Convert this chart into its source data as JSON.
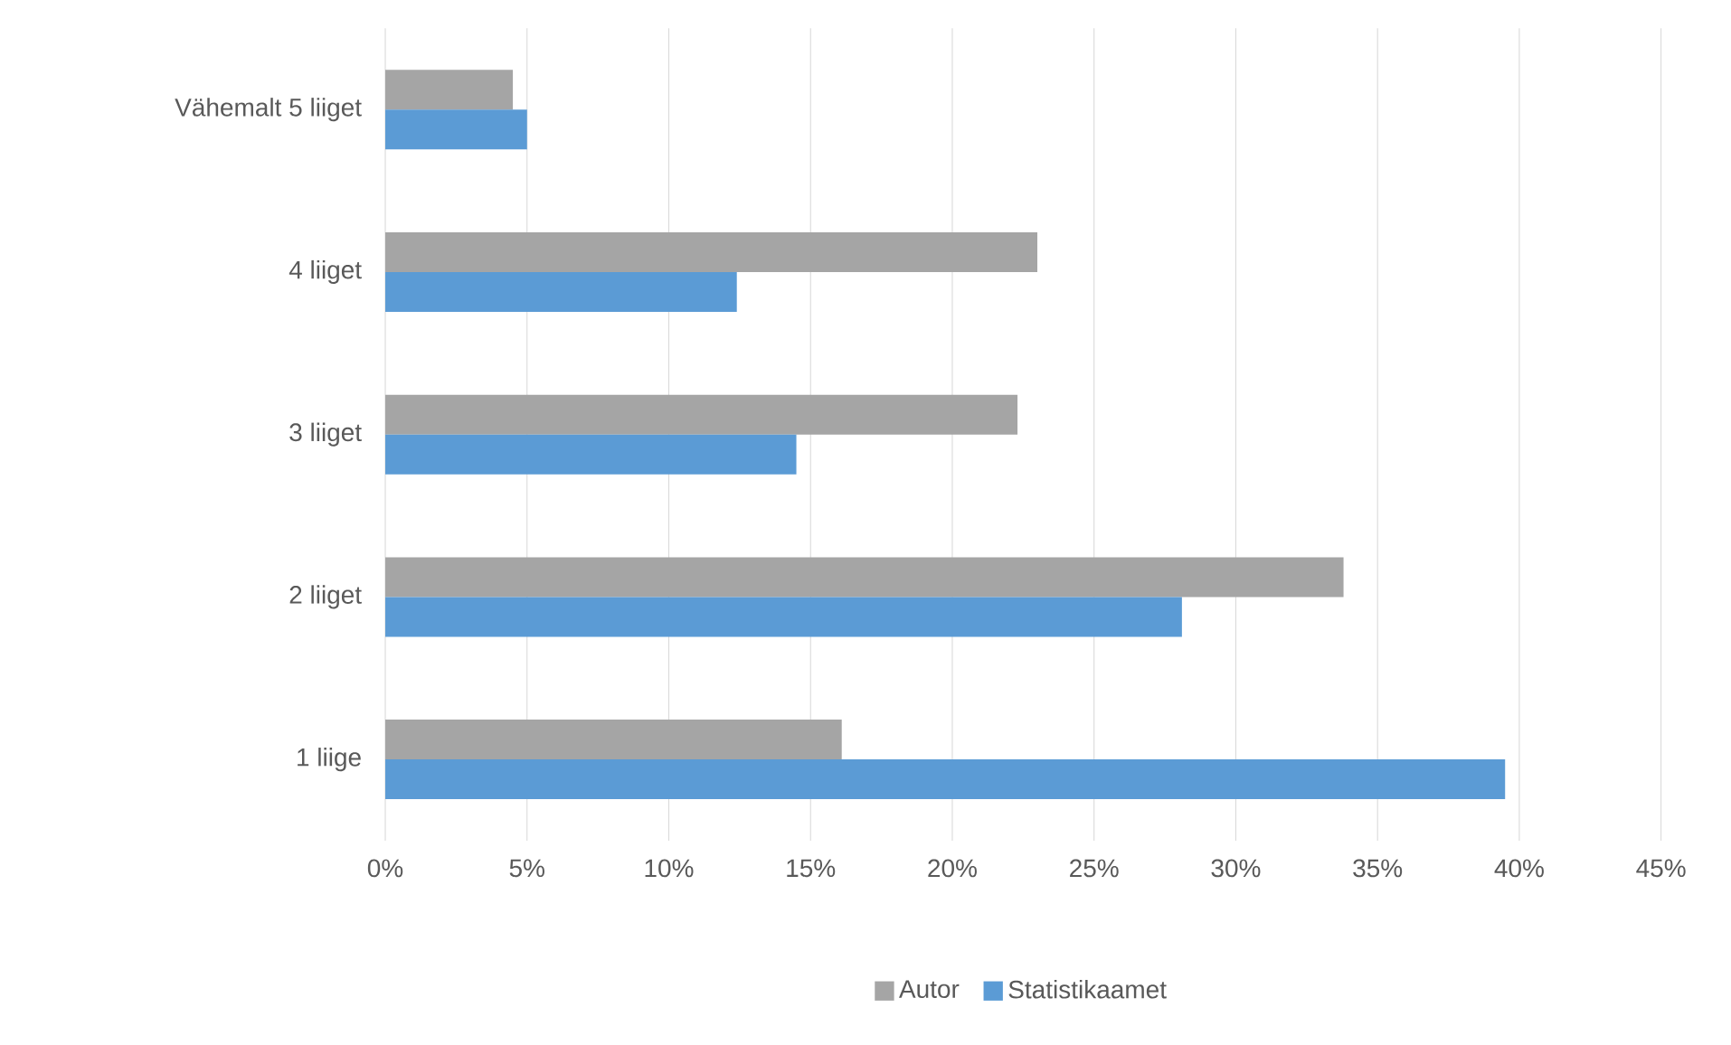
{
  "chart_data": {
    "type": "bar",
    "orientation": "horizontal",
    "categories": [
      "Vähemalt 5 liiget",
      "4 liiget",
      "3 liiget",
      "2 liiget",
      "1 liige"
    ],
    "series": [
      {
        "name": "Autor",
        "color": "#a5a5a5",
        "values": [
          4.5,
          23.0,
          22.3,
          33.8,
          16.1
        ]
      },
      {
        "name": "Statistikaamet",
        "color": "#5b9bd5",
        "values": [
          5.0,
          12.4,
          14.5,
          28.1,
          39.5
        ]
      }
    ],
    "xlim": [
      0,
      45
    ],
    "xticks": [
      {
        "value": 0,
        "label": "0%"
      },
      {
        "value": 5,
        "label": "5%"
      },
      {
        "value": 10,
        "label": "10%"
      },
      {
        "value": 15,
        "label": "15%"
      },
      {
        "value": 20,
        "label": "20%"
      },
      {
        "value": 25,
        "label": "25%"
      },
      {
        "value": 30,
        "label": "30%"
      },
      {
        "value": 35,
        "label": "35%"
      },
      {
        "value": 40,
        "label": "40%"
      },
      {
        "value": 45,
        "label": "45%"
      }
    ],
    "grid": "x",
    "legend": "bottom"
  }
}
